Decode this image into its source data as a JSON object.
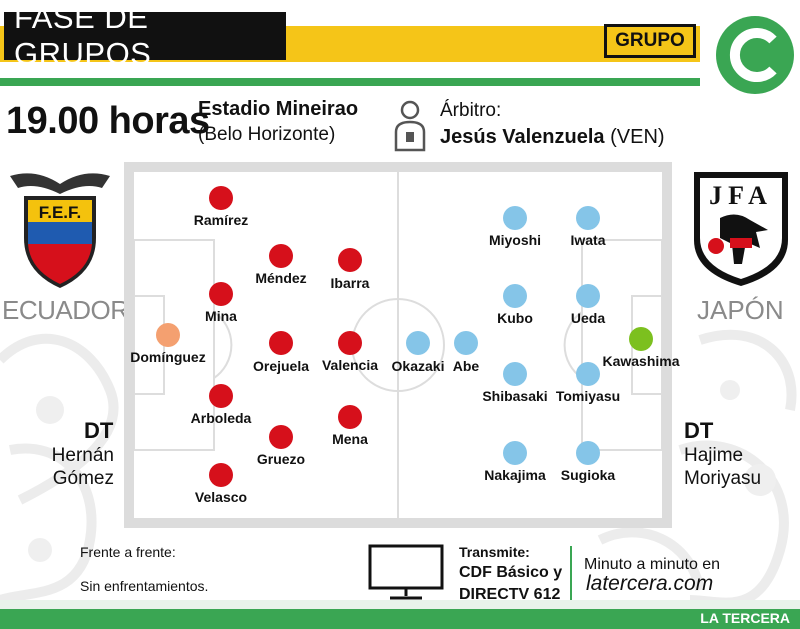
{
  "header": {
    "phase": "FASE DE GRUPOS",
    "group_label": "GRUPO",
    "group_letter": "C"
  },
  "info": {
    "time": "19.00 horas",
    "stadium": "Estadio Mineirao",
    "city": "(Belo Horizonte)",
    "referee_label": "Árbitro:",
    "referee_name": "Jesús Valenzuela",
    "referee_country": "(VEN)"
  },
  "teams": {
    "home": {
      "name": "ECUADOR",
      "crest_text": "F.E.F.",
      "dt_label": "DT",
      "coach_line1": "Hernán",
      "coach_line2": "Gómez",
      "color": "#d6101b",
      "gk_color": "#f4a070",
      "players": [
        {
          "name": "Domínguez"
        },
        {
          "name": "Ramírez"
        },
        {
          "name": "Mina"
        },
        {
          "name": "Arboleda"
        },
        {
          "name": "Velasco"
        },
        {
          "name": "Méndez"
        },
        {
          "name": "Orejuela"
        },
        {
          "name": "Gruezo"
        },
        {
          "name": "Ibarra"
        },
        {
          "name": "Valencia"
        },
        {
          "name": "Mena"
        }
      ]
    },
    "away": {
      "name": "JAPÓN",
      "crest_text": "JFA",
      "dt_label": "DT",
      "coach_line1": "Hajime",
      "coach_line2": "Moriyasu",
      "color": "#85c5e8",
      "gk_color": "#7cc01f",
      "players": [
        {
          "name": "Kawashima"
        },
        {
          "name": "Iwata"
        },
        {
          "name": "Ueda"
        },
        {
          "name": "Tomiyasu"
        },
        {
          "name": "Sugioka"
        },
        {
          "name": "Miyoshi"
        },
        {
          "name": "Kubo"
        },
        {
          "name": "Shibasaki"
        },
        {
          "name": "Nakajima"
        },
        {
          "name": "Okazaki"
        },
        {
          "name": "Abe"
        }
      ]
    }
  },
  "footer": {
    "h2h_label": "Frente a frente:",
    "h2h_text": "Sin enfrentamientos.",
    "tv_label": "Transmite:",
    "tv_channel_1": "CDF Básico y",
    "tv_channel_2": "DIRECTV 612",
    "live_label": "Minuto a minuto en",
    "live_site": "latercera.com",
    "publisher": "LA TERCERA"
  },
  "icons": {
    "referee": "referee-person-icon",
    "tv": "tv-icon"
  },
  "colors": {
    "yellow": "#f5c518",
    "green": "#3aa653",
    "pitch_border": "#dcdcdc"
  }
}
